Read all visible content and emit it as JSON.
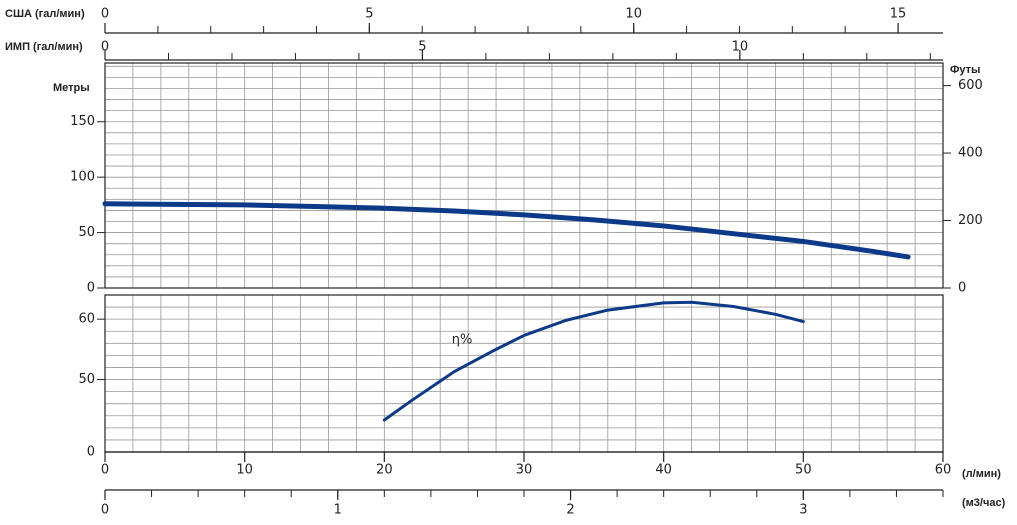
{
  "chart_data": [
    {
      "type": "axis",
      "label": "США (гал/мин)",
      "xlim": [
        0,
        15.85
      ],
      "xticks": [
        0,
        5,
        10,
        15
      ],
      "minor_xticks": [
        0,
        1,
        2,
        3,
        4,
        5,
        6,
        7,
        8,
        9,
        10,
        11,
        12,
        13,
        14,
        15
      ]
    },
    {
      "type": "axis",
      "label": "ИМП (гал/мин)",
      "xlim": [
        0,
        13.2
      ],
      "xticks": [
        0,
        5,
        10
      ],
      "minor_xticks": [
        0,
        1,
        2,
        3,
        4,
        5,
        6,
        7,
        8,
        9,
        10,
        11,
        12,
        13
      ]
    },
    {
      "type": "line",
      "ylabel": "Метры",
      "y2label": "Футы",
      "xlim": [
        0,
        60
      ],
      "ylim": [
        0,
        203
      ],
      "yticks": [
        0,
        50,
        100,
        150
      ],
      "y2lim": [
        0,
        667
      ],
      "y2ticks": [
        0,
        200,
        400,
        600
      ],
      "minor_xticks": [
        0,
        2,
        4,
        6,
        8,
        10,
        12,
        14,
        16,
        18,
        20,
        22,
        24,
        26,
        28,
        30,
        32,
        34,
        36,
        38,
        40,
        42,
        44,
        46,
        48,
        50,
        52,
        54,
        56,
        58,
        60
      ],
      "minor_yticks": [
        0,
        10,
        20,
        30,
        40,
        50,
        60,
        70,
        80,
        90,
        100,
        110,
        120,
        130,
        140,
        150,
        160,
        170,
        180,
        190,
        200
      ],
      "series": [
        {
          "color": "#0d3a88",
          "x": [
            0,
            5,
            10,
            15,
            20,
            25,
            30,
            35,
            40,
            45,
            50,
            55,
            57.5
          ],
          "values": [
            76,
            75.5,
            75,
            73.5,
            72,
            69.5,
            66,
            61.5,
            56,
            49,
            42,
            33,
            28
          ]
        }
      ]
    },
    {
      "type": "line",
      "annotation": "η%",
      "origin_label": "0",
      "xlim": [
        0,
        60
      ],
      "ylim": [
        38,
        64
      ],
      "yticks": [
        50,
        60
      ],
      "minor_xticks": [
        0,
        2,
        4,
        6,
        8,
        10,
        12,
        14,
        16,
        18,
        20,
        22,
        24,
        26,
        28,
        30,
        32,
        34,
        36,
        38,
        40,
        42,
        44,
        46,
        48,
        50,
        52,
        54,
        56,
        58,
        60
      ],
      "minor_yticks": [
        38,
        40,
        42,
        44,
        46,
        48,
        50,
        52,
        54,
        56,
        58,
        60,
        62,
        64
      ],
      "series": [
        {
          "color": "#0d3a88",
          "x": [
            20,
            22,
            25,
            28,
            30,
            33,
            36,
            40,
            42,
            45,
            48,
            50
          ],
          "values": [
            43.3,
            46.6,
            51.3,
            55,
            57.3,
            59.8,
            61.5,
            62.7,
            62.8,
            62.1,
            60.8,
            59.6
          ]
        }
      ]
    },
    {
      "type": "axis",
      "label": "(л/мин)",
      "xlim": [
        0,
        60
      ],
      "xticks": [
        0,
        10,
        20,
        30,
        40,
        50,
        60
      ]
    },
    {
      "type": "axis",
      "label": "(м3/час)",
      "xlim": [
        0,
        3.6
      ],
      "xticks": [
        0,
        1,
        2,
        3
      ],
      "minor_xticks": [
        0,
        0.2,
        0.4,
        0.6,
        0.8,
        1,
        1.2,
        1.4,
        1.6,
        1.8,
        2,
        2.2,
        2.4,
        2.6,
        2.8,
        3,
        3.2,
        3.4,
        3.6
      ]
    }
  ]
}
